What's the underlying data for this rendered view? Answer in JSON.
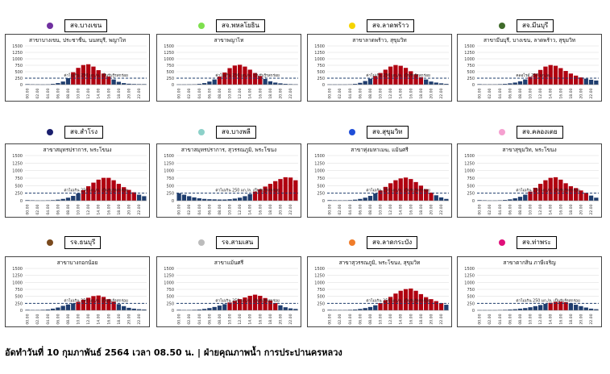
{
  "footer": "อัดทำวันที่ 10 กุมภาพันธ์ 2564 เวลา 08.50 น. | ฝ่ายคุณภาพน้ำ การประปานครหลวง",
  "chart_common": {
    "type": "bar",
    "categories": [
      "00.00",
      "01.00",
      "02.00",
      "03.00",
      "04.00",
      "05.00",
      "06.00",
      "07.00",
      "08.00",
      "09.00",
      "10.00",
      "11.00",
      "12.00",
      "13.00",
      "14.00",
      "15.00",
      "16.00",
      "17.00",
      "18.00",
      "19.00",
      "20.00",
      "21.00",
      "22.00",
      "23.00"
    ],
    "tick_labels": [
      "00.00",
      "02.00",
      "04.00",
      "06.00",
      "08.00",
      "10.00",
      "12.00",
      "14.00",
      "16.00",
      "18.00",
      "20.00",
      "22.00"
    ],
    "yticks": [
      0,
      250,
      500,
      750,
      1000,
      1250,
      1500
    ],
    "ylim": [
      0,
      1500
    ],
    "threshold": 250,
    "threshold_label": "ค่าไม่เกิน 250 มก./ล. เป็นรับรู้รสกร่อย",
    "threshold_label_short": "คลอไรด์ 250 มก./ล.",
    "colors": {
      "below": "#1f3d6e",
      "above": "#b00010",
      "threshold": "#1f3d6e",
      "grid": "#d9d9d9"
    }
  },
  "chart_data": [
    {
      "type": "bar",
      "station": "สจ.บางเขน",
      "dot_color": "#7030a0",
      "title": "สาขาบางเขน, ประชาชื่น, นนทบุรี, พญาไท",
      "values": [
        20,
        15,
        12,
        10,
        12,
        30,
        60,
        120,
        250,
        480,
        650,
        760,
        790,
        700,
        560,
        430,
        310,
        200,
        110,
        60,
        35,
        25,
        20,
        20
      ]
    },
    {
      "type": "bar",
      "station": "สจ.พหลโยธิน",
      "dot_color": "#7ee04e",
      "title": "สาขาพญาไท",
      "values": [
        10,
        10,
        12,
        15,
        30,
        60,
        120,
        200,
        310,
        470,
        640,
        740,
        770,
        700,
        580,
        450,
        330,
        220,
        130,
        80,
        50,
        30,
        20,
        15
      ]
    },
    {
      "type": "bar",
      "station": "สจ.ลาดพร้าว",
      "dot_color": "#f5d400",
      "title": "สาขาลาดพร้าว, สุขุมวิท",
      "values": [
        10,
        10,
        10,
        10,
        15,
        30,
        70,
        140,
        230,
        330,
        450,
        580,
        700,
        760,
        730,
        650,
        520,
        400,
        290,
        200,
        120,
        80,
        50,
        30
      ]
    },
    {
      "type": "bar",
      "station": "สจ.มีนบุรี",
      "dot_color": "#3f6b2a",
      "title": "สาขามีนบุรี, บางเขน, ลาดพร้าว, สุขุมวิท",
      "values": [
        20,
        15,
        15,
        15,
        20,
        30,
        50,
        80,
        130,
        200,
        300,
        420,
        570,
        700,
        760,
        730,
        640,
        530,
        430,
        350,
        280,
        230,
        190,
        160
      ]
    },
    {
      "type": "bar",
      "station": "สจ.สำโรง",
      "dot_color": "#1a1f6e",
      "title": "สาขาสมุทรปราการ, พระโขนง",
      "values": [
        20,
        15,
        10,
        10,
        15,
        20,
        35,
        60,
        100,
        160,
        240,
        350,
        480,
        600,
        700,
        760,
        760,
        680,
        560,
        450,
        360,
        280,
        200,
        150
      ]
    },
    {
      "type": "bar",
      "station": "สจ.บางพลี",
      "dot_color": "#8dd1c9",
      "title": "สาขาสมุทรปราการ, สุวรรณภูมิ, พระโขนง",
      "values": [
        250,
        200,
        150,
        110,
        80,
        60,
        50,
        45,
        40,
        40,
        50,
        70,
        100,
        150,
        220,
        300,
        380,
        470,
        560,
        650,
        720,
        780,
        770,
        680
      ]
    },
    {
      "type": "bar",
      "station": "สจ.สุขุมวิท",
      "dot_color": "#1f4ed8",
      "title": "สาขาทุ่งมหาเมฆ, แม้นศรี",
      "values": [
        20,
        15,
        15,
        15,
        20,
        35,
        60,
        100,
        160,
        240,
        340,
        460,
        580,
        680,
        740,
        770,
        720,
        620,
        500,
        380,
        270,
        180,
        110,
        60
      ]
    },
    {
      "type": "bar",
      "station": "สจ.คลองเตย",
      "dot_color": "#f5a0d0",
      "title": "สาขาสุขุมวิท, พระโขนง",
      "values": [
        20,
        15,
        10,
        10,
        15,
        25,
        45,
        80,
        130,
        200,
        300,
        430,
        560,
        680,
        760,
        780,
        700,
        580,
        480,
        420,
        340,
        260,
        170,
        100
      ]
    },
    {
      "type": "bar",
      "station": "รจ.ธนบุรี",
      "dot_color": "#7a4a1e",
      "title": "สาขาบางกอกน้อย",
      "values": [
        20,
        15,
        15,
        20,
        30,
        60,
        100,
        160,
        210,
        250,
        300,
        380,
        450,
        510,
        530,
        480,
        400,
        310,
        220,
        150,
        90,
        60,
        40,
        30
      ]
    },
    {
      "type": "bar",
      "station": "รจ.สามเสน",
      "dot_color": "#bcbcbc",
      "title": "สาขาแม้นศรี",
      "values": [
        20,
        15,
        15,
        20,
        30,
        50,
        80,
        120,
        170,
        220,
        280,
        340,
        400,
        460,
        520,
        560,
        520,
        440,
        350,
        260,
        180,
        110,
        70,
        50
      ]
    },
    {
      "type": "bar",
      "station": "สจ.ลาดกระบัง",
      "dot_color": "#f07c2a",
      "title": "สาขาสุวรรณภูมิ, พระโขนง, สุขุมวิท",
      "values": [
        20,
        15,
        15,
        15,
        20,
        30,
        50,
        80,
        120,
        180,
        260,
        360,
        480,
        600,
        700,
        760,
        780,
        700,
        580,
        470,
        400,
        330,
        260,
        200
      ]
    },
    {
      "type": "bar",
      "station": "สจ.ท่าพระ",
      "dot_color": "#e0107a",
      "title": "สาขาตากสิน ภาษีเจริญ",
      "values": [
        10,
        10,
        10,
        10,
        15,
        20,
        30,
        40,
        60,
        80,
        110,
        150,
        190,
        230,
        270,
        300,
        310,
        290,
        250,
        200,
        150,
        100,
        60,
        40
      ]
    }
  ]
}
